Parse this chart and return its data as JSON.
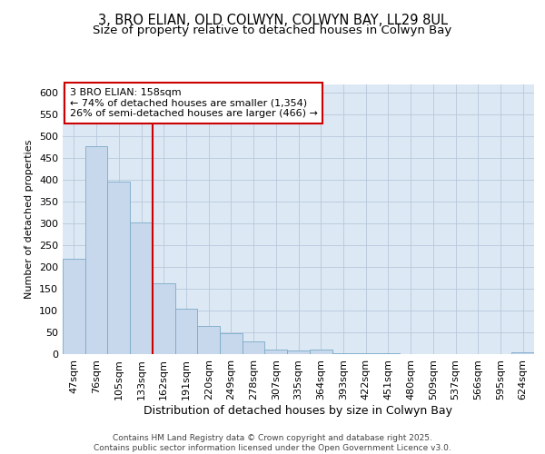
{
  "title_line1": "3, BRO ELIAN, OLD COLWYN, COLWYN BAY, LL29 8UL",
  "title_line2": "Size of property relative to detached houses in Colwyn Bay",
  "xlabel": "Distribution of detached houses by size in Colwyn Bay",
  "ylabel": "Number of detached properties",
  "categories": [
    "47sqm",
    "76sqm",
    "105sqm",
    "133sqm",
    "162sqm",
    "191sqm",
    "220sqm",
    "249sqm",
    "278sqm",
    "307sqm",
    "335sqm",
    "364sqm",
    "393sqm",
    "422sqm",
    "451sqm",
    "480sqm",
    "509sqm",
    "537sqm",
    "566sqm",
    "595sqm",
    "624sqm"
  ],
  "values": [
    218,
    478,
    395,
    302,
    163,
    105,
    65,
    47,
    29,
    10,
    8,
    10,
    3,
    3,
    3,
    0,
    1,
    0,
    0,
    0,
    4
  ],
  "bar_color": "#c8d8ec",
  "bar_edge_color": "#7aaac8",
  "vline_x": 3.5,
  "vline_color": "#cc0000",
  "vline_label_text": "3 BRO ELIAN: 158sqm",
  "annotation_line1": "← 74% of detached houses are smaller (1,354)",
  "annotation_line2": "26% of semi-detached houses are larger (466) →",
  "annotation_box_color": "#cc0000",
  "annotation_bg": "#ffffff",
  "ylim": [
    0,
    620
  ],
  "yticks": [
    0,
    50,
    100,
    150,
    200,
    250,
    300,
    350,
    400,
    450,
    500,
    550,
    600
  ],
  "grid_color": "#b8c8dc",
  "bg_color": "#dce8f4",
  "footer_line1": "Contains HM Land Registry data © Crown copyright and database right 2025.",
  "footer_line2": "Contains public sector information licensed under the Open Government Licence v3.0.",
  "title_fontsize": 10.5,
  "subtitle_fontsize": 9.5,
  "xlabel_fontsize": 9,
  "ylabel_fontsize": 8,
  "tick_fontsize": 8,
  "footer_fontsize": 6.5,
  "annot_fontsize": 8
}
